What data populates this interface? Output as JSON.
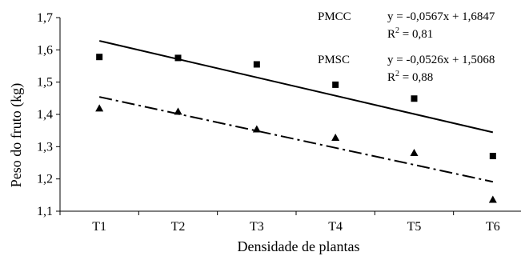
{
  "chart_data": {
    "type": "scatter",
    "xlabel": "Densidade de plantas",
    "ylabel": "Peso do fruto (kg)",
    "categories": [
      "T1",
      "T2",
      "T3",
      "T4",
      "T5",
      "T6"
    ],
    "y_tick_labels": [
      "1,1",
      "1,2",
      "1,3",
      "1,4",
      "1,5",
      "1,6",
      "1,7"
    ],
    "ylim": [
      1.1,
      1.7
    ],
    "grid": false,
    "series": [
      {
        "name": "PMCC",
        "marker": "square",
        "values": [
          1.578,
          1.575,
          1.555,
          1.492,
          1.449,
          1.271
        ],
        "trendline": {
          "style": "solid",
          "slope": -0.0567,
          "intercept": 1.6847
        },
        "equation": "y = -0,0567x + 1,6847",
        "r2_prefix": "R",
        "r2_exponent": "2",
        "r2_value": " = 0,81"
      },
      {
        "name": "PMSC",
        "marker": "triangle",
        "values": [
          1.419,
          1.409,
          1.354,
          1.328,
          1.281,
          1.136
        ],
        "trendline": {
          "style": "dash-dot",
          "slope": -0.0526,
          "intercept": 1.5068
        },
        "equation": "y = -0,0526x + 1,5068",
        "r2_prefix": "R",
        "r2_exponent": "2",
        "r2_value": " = 0,88"
      }
    ]
  }
}
